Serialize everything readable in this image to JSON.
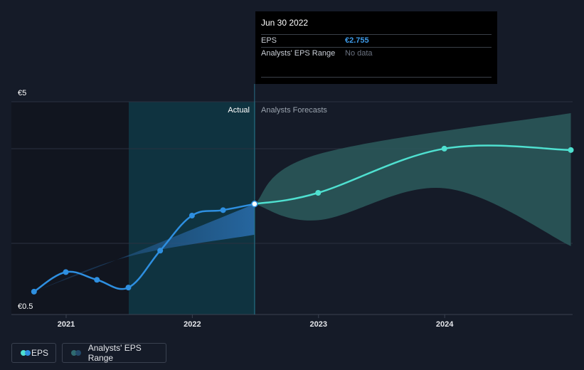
{
  "tooltip": {
    "date": "Jun 30 2022",
    "rows": [
      {
        "label": "EPS",
        "value": "€2.755"
      },
      {
        "label": "Analysts' EPS Range",
        "value": "No data"
      }
    ]
  },
  "legend": [
    {
      "label": "EPS"
    },
    {
      "label": "Analysts' EPS Range"
    }
  ],
  "colors": {
    "background": "#151b28",
    "actual_line": "#2e8fe0",
    "forecast_line": "#4fe0d0",
    "range_fill": "#2c5b5c",
    "actual_highlight": "#0f3340"
  },
  "chart_data": {
    "type": "line",
    "section_labels": {
      "actual": "Actual",
      "forecast": "Analysts Forecasts"
    },
    "y_tick_labels": {
      "top": "€5",
      "bottom": "€0.5"
    },
    "ylim": [
      0.5,
      5
    ],
    "x_ticks": [
      "2021",
      "2022",
      "2023",
      "2024"
    ],
    "divider_date": "2022-06-30",
    "series": [
      {
        "name": "EPS",
        "kind": "actual",
        "points": [
          {
            "x": "2020-09-30",
            "y": 0.83
          },
          {
            "x": "2020-12-31",
            "y": 1.26
          },
          {
            "x": "2021-03-31",
            "y": 1.09
          },
          {
            "x": "2021-06-30",
            "y": 0.92
          },
          {
            "x": "2021-09-30",
            "y": 1.73
          },
          {
            "x": "2021-12-31",
            "y": 2.5
          },
          {
            "x": "2022-03-31",
            "y": 2.62
          },
          {
            "x": "2022-06-30",
            "y": 2.755
          }
        ]
      },
      {
        "name": "EPS",
        "kind": "forecast",
        "points": [
          {
            "x": "2022-06-30",
            "y": 2.755
          },
          {
            "x": "2022-12-31",
            "y": 3.0
          },
          {
            "x": "2023-12-31",
            "y": 3.97
          },
          {
            "x": "2024-12-31",
            "y": 3.94
          }
        ]
      }
    ],
    "range_band": {
      "name": "Analysts' EPS Range",
      "actual_lower": [
        {
          "x": "2020-09-30",
          "y": 0.83
        },
        {
          "x": "2021-06-30",
          "y": 1.6
        },
        {
          "x": "2022-06-30",
          "y": 2.08
        }
      ],
      "actual_upper": [
        {
          "x": "2020-09-30",
          "y": 0.83
        },
        {
          "x": "2021-06-30",
          "y": 1.63
        },
        {
          "x": "2022-06-30",
          "y": 2.755
        }
      ],
      "forecast_upper": [
        {
          "x": "2022-06-30",
          "y": 2.755
        },
        {
          "x": "2023-01-01",
          "y": 3.85
        },
        {
          "x": "2024-12-31",
          "y": 4.75
        }
      ],
      "forecast_lower": [
        {
          "x": "2022-06-30",
          "y": 2.755
        },
        {
          "x": "2023-01-01",
          "y": 2.4
        },
        {
          "x": "2024-01-01",
          "y": 3.1
        },
        {
          "x": "2024-12-31",
          "y": 1.83
        }
      ]
    }
  }
}
